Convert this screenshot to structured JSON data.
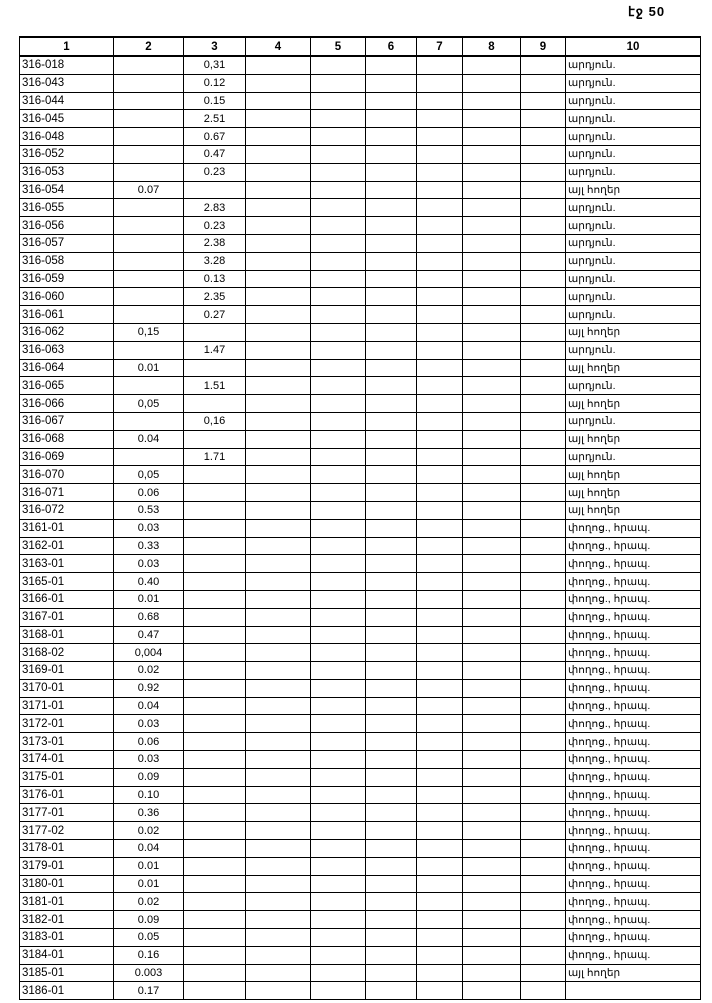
{
  "page_number": "էջ 50",
  "columns": [
    "1",
    "2",
    "3",
    "4",
    "5",
    "6",
    "7",
    "8",
    "9",
    "10"
  ],
  "rows": [
    [
      "316-018",
      "",
      "0,31",
      "արդյուն."
    ],
    [
      "316-043",
      "",
      "0.12",
      "արդյուն."
    ],
    [
      "316-044",
      "",
      "0.15",
      "արդյուն."
    ],
    [
      "316-045",
      "",
      "2.51",
      "արդյուն."
    ],
    [
      "316-048",
      "",
      "0.67",
      "արդյուն."
    ],
    [
      "316-052",
      "",
      "0.47",
      "արդյուն."
    ],
    [
      "316-053",
      "",
      "0.23",
      "արդյուն."
    ],
    [
      "316-054",
      "0.07",
      "",
      "այլ հողեր"
    ],
    [
      "316-055",
      "",
      "2.83",
      "արդյուն."
    ],
    [
      "316-056",
      "",
      "0.23",
      "արդյուն."
    ],
    [
      "316-057",
      "",
      "2.38",
      "արդյուն."
    ],
    [
      "316-058",
      "",
      "3.28",
      "արդյուն."
    ],
    [
      "316-059",
      "",
      "0.13",
      "արդյուն."
    ],
    [
      "316-060",
      "",
      "2.35",
      "արդյուն."
    ],
    [
      "316-061",
      "",
      "0.27",
      "արդյուն."
    ],
    [
      "316-062",
      "0,15",
      "",
      "այլ հողեր"
    ],
    [
      "316-063",
      "",
      "1.47",
      "արդյուն."
    ],
    [
      "316-064",
      "0.01",
      "",
      "այլ հողեր"
    ],
    [
      "316-065",
      "",
      "1.51",
      "արդյուն."
    ],
    [
      "316-066",
      "0,05",
      "",
      "այլ հողեր"
    ],
    [
      "316-067",
      "",
      "0,16",
      "արդյուն."
    ],
    [
      "316-068",
      "0.04",
      "",
      "այլ հողեր"
    ],
    [
      "316-069",
      "",
      "1.71",
      "արդյուն."
    ],
    [
      "316-070",
      "0,05",
      "",
      "այլ հողեր"
    ],
    [
      "316-071",
      "0.06",
      "",
      "այլ հողեր"
    ],
    [
      "316-072",
      "0.53",
      "",
      "այլ հողեր"
    ],
    [
      "3161-01",
      "0.03",
      "",
      "փողոց., հրապ."
    ],
    [
      "3162-01",
      "0.33",
      "",
      "փողոց., հրապ."
    ],
    [
      "3163-01",
      "0.03",
      "",
      "փողոց., հրապ."
    ],
    [
      "3165-01",
      "0.40",
      "",
      "փողոց., հրապ."
    ],
    [
      "3166-01",
      "0.01",
      "",
      "փողոց., հրապ."
    ],
    [
      "3167-01",
      "0.68",
      "",
      "փողոց., հրապ."
    ],
    [
      "3168-01",
      "0.47",
      "",
      "փողոց., հրապ."
    ],
    [
      "3168-02",
      "0,004",
      "",
      "փողոց., հրապ."
    ],
    [
      "3169-01",
      "0.02",
      "",
      "փողոց., հրապ."
    ],
    [
      "3170-01",
      "0.92",
      "",
      "փողոց., հրապ."
    ],
    [
      "3171-01",
      "0.04",
      "",
      "փողոց., հրապ."
    ],
    [
      "3172-01",
      "0.03",
      "",
      "փողոց., հրապ."
    ],
    [
      "3173-01",
      "0.06",
      "",
      "փողոց., հրապ."
    ],
    [
      "3174-01",
      "0.03",
      "",
      "փողոց., հրապ."
    ],
    [
      "3175-01",
      "0.09",
      "",
      "փողոց., հրապ."
    ],
    [
      "3176-01",
      "0.10",
      "",
      "փողոց., հրապ."
    ],
    [
      "3177-01",
      "0.36",
      "",
      "փողոց., հրապ."
    ],
    [
      "3177-02",
      "0.02",
      "",
      "փողոց., հրապ."
    ],
    [
      "3178-01",
      "0.04",
      "",
      "փողոց., հրապ."
    ],
    [
      "3179-01",
      "0.01",
      "",
      "փողոց., հրապ."
    ],
    [
      "3180-01",
      "0.01",
      "",
      "փողոց., հրապ."
    ],
    [
      "3181-01",
      "0.02",
      "",
      "փողոց., հրապ."
    ],
    [
      "3182-01",
      "0.09",
      "",
      "փողոց., հրապ."
    ],
    [
      "3183-01",
      "0.05",
      "",
      "փողոց., հրապ."
    ],
    [
      "3184-01",
      "0.16",
      "",
      "փողոց., հրապ."
    ],
    [
      "3185-01",
      "0.003",
      "",
      "այլ հողեր"
    ],
    [
      "3186-01",
      "0.17",
      "",
      ""
    ]
  ]
}
